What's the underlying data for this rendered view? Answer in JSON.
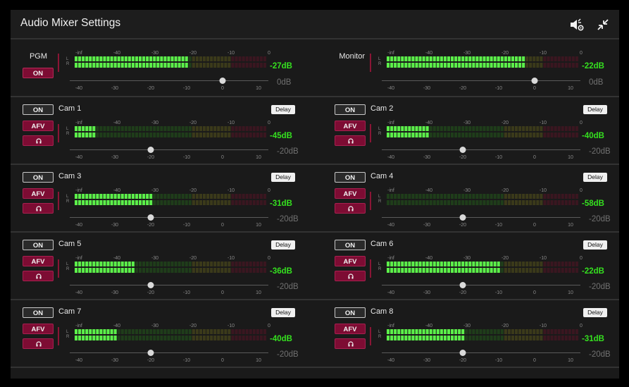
{
  "window": {
    "title": "Audio Mixer Settings",
    "icons": [
      "speaker-settings-icon",
      "collapse-icon"
    ]
  },
  "meter_ticks": [
    "-inf",
    "-40",
    "-30",
    "-20",
    "-10",
    "0"
  ],
  "fader_ticks": [
    "-40",
    "-30",
    "-20",
    "-10",
    "0",
    "10"
  ],
  "colors": {
    "green_on": "#5cf04a",
    "green_off": "#1f3d1a",
    "yellow_off": "#3b3a1a",
    "red_off": "#3a1620",
    "accent_red": "#7d0c33",
    "db_green": "#35e11f"
  },
  "masters": [
    {
      "name": "PGM",
      "on_label": "ON",
      "level_db": "-27dB",
      "level_fraction": 0.59,
      "fader_db": 0,
      "gain_label": "0dB"
    },
    {
      "name": "Monitor",
      "level_db": "-22dB",
      "level_fraction": 0.73,
      "fader_db": 0,
      "gain_label": "0dB"
    }
  ],
  "channels": [
    {
      "name": "Cam 1",
      "on_label": "ON",
      "afv_label": "AFV",
      "delay_label": "Delay",
      "level_db": "-45dB",
      "level_fraction": 0.12,
      "fader_db": -20,
      "gain_label": "-20dB"
    },
    {
      "name": "Cam 2",
      "on_label": "ON",
      "afv_label": "AFV",
      "delay_label": "Delay",
      "level_db": "-40dB",
      "level_fraction": 0.22,
      "fader_db": -20,
      "gain_label": "-20dB"
    },
    {
      "name": "Cam 3",
      "on_label": "ON",
      "afv_label": "AFV",
      "delay_label": "Delay",
      "level_db": "-31dB",
      "level_fraction": 0.41,
      "fader_db": -20,
      "gain_label": "-20dB"
    },
    {
      "name": "Cam 4",
      "on_label": "ON",
      "afv_label": "AFV",
      "delay_label": "Delay",
      "level_db": "-58dB",
      "level_fraction": 0.0,
      "fader_db": -20,
      "gain_label": "-20dB"
    },
    {
      "name": "Cam 5",
      "on_label": "ON",
      "afv_label": "AFV",
      "delay_label": "Delay",
      "level_db": "-36dB",
      "level_fraction": 0.31,
      "fader_db": -20,
      "gain_label": "-20dB"
    },
    {
      "name": "Cam 6",
      "on_label": "ON",
      "afv_label": "AFV",
      "delay_label": "Delay",
      "level_db": "-22dB",
      "level_fraction": 0.59,
      "fader_db": -20,
      "gain_label": "-20dB"
    },
    {
      "name": "Cam 7",
      "on_label": "ON",
      "afv_label": "AFV",
      "delay_label": "Delay",
      "level_db": "-40dB",
      "level_fraction": 0.22,
      "fader_db": -20,
      "gain_label": "-20dB"
    },
    {
      "name": "Cam 8",
      "on_label": "ON",
      "afv_label": "AFV",
      "delay_label": "Delay",
      "level_db": "-31dB",
      "level_fraction": 0.41,
      "fader_db": -20,
      "gain_label": "-20dB"
    }
  ]
}
